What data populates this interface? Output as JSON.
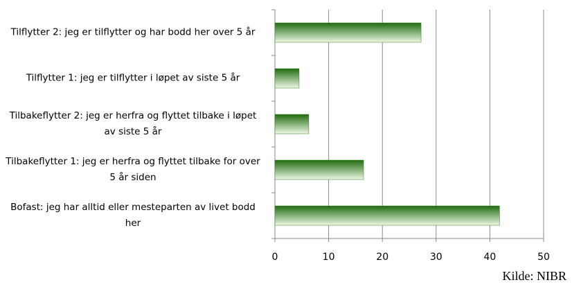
{
  "chart_data": {
    "type": "hbar",
    "categories": [
      "Tilflytter 2: jeg er tilflytter og har bodd her over 5 år",
      "Tilflytter 1: jeg er tilflytter i løpet av siste 5 år",
      "Tilbakeflytter 2: jeg er herfra og flyttet tilbake i løpet av siste 5 år",
      "Tilbakeflytter 1: jeg er herfra og flyttet tilbake for over 5 år siden",
      "Bofast: jeg har alltid eller mesteparten av livet bodd her"
    ],
    "values": [
      27.2,
      4.5,
      6.3,
      16.5,
      41.8
    ],
    "color": "#2e7d1e",
    "xlim": [
      0,
      50
    ],
    "xticks": [
      0,
      10,
      20,
      30,
      40,
      50
    ],
    "grid": true,
    "source": "Kilde: NIBR"
  }
}
